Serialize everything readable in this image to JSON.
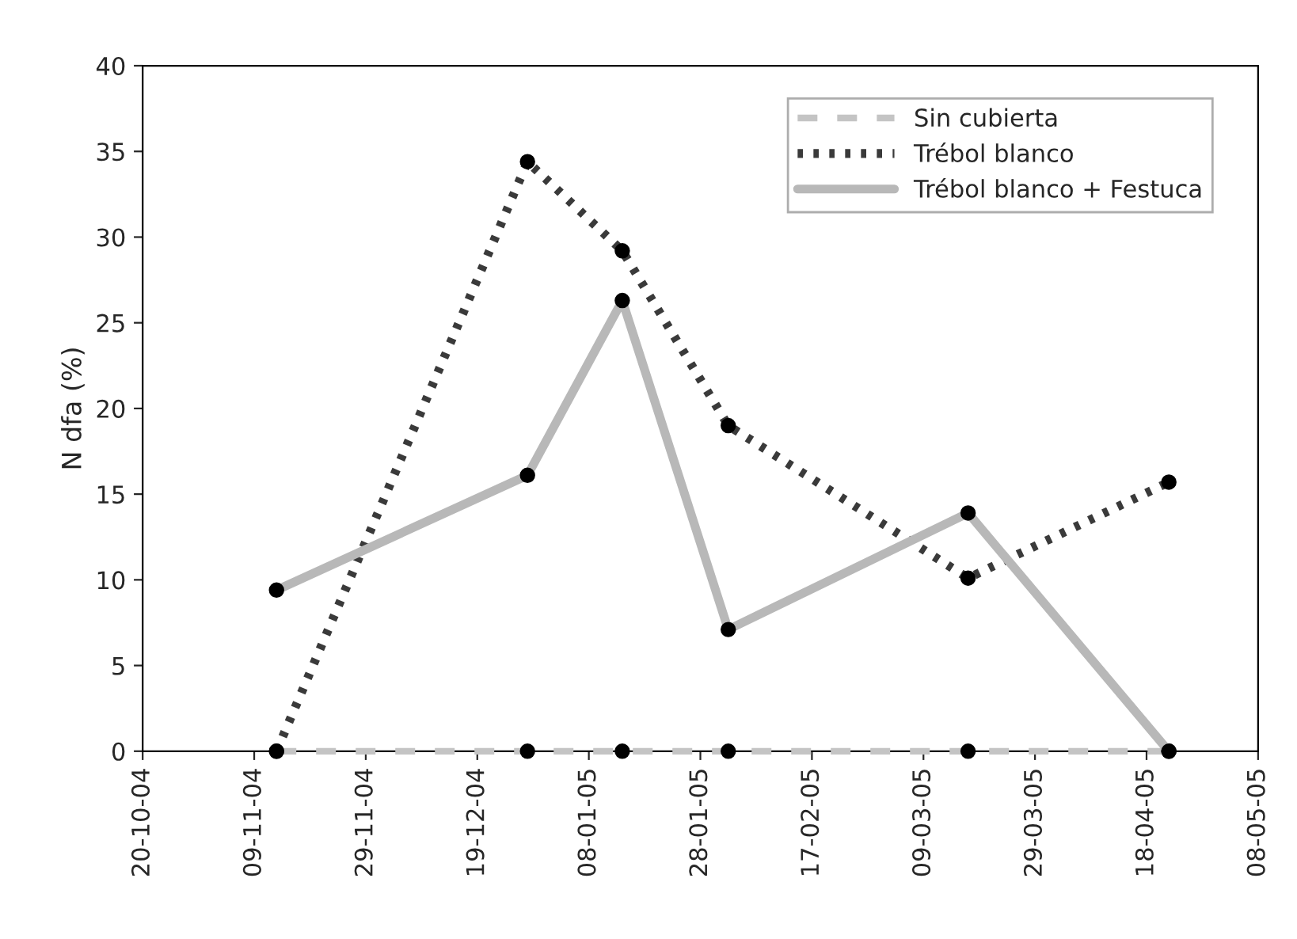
{
  "chart_data": {
    "type": "line",
    "ylabel": "N dfa (%)",
    "x": [
      "2004-11-13",
      "2004-12-28",
      "2005-01-14",
      "2005-02-02",
      "2005-03-17",
      "2005-04-22"
    ],
    "series": [
      {
        "name": "Sin cubierta",
        "color": "#c4c4c4",
        "line_style": "dashed",
        "values": [
          0,
          0,
          0,
          0,
          0,
          0
        ]
      },
      {
        "name": "Trébol blanco",
        "color": "#3a3a3a",
        "line_style": "dotted",
        "values": [
          0,
          34.4,
          29.2,
          19.0,
          10.1,
          15.7
        ]
      },
      {
        "name": "Trébol blanco + Festuca",
        "color": "#b8b8b8",
        "line_style": "solid",
        "values": [
          9.4,
          16.1,
          26.3,
          7.1,
          13.9,
          0
        ]
      }
    ],
    "marker": "circle",
    "xlim": [
      "2004-10-20",
      "2005-05-08"
    ],
    "xticks": [
      {
        "value": "2004-10-20",
        "label": "20-10-04"
      },
      {
        "value": "2004-11-09",
        "label": "09-11-04"
      },
      {
        "value": "2004-11-29",
        "label": "29-11-04"
      },
      {
        "value": "2004-12-19",
        "label": "19-12-04"
      },
      {
        "value": "2005-01-08",
        "label": "08-01-05"
      },
      {
        "value": "2005-01-28",
        "label": "28-01-05"
      },
      {
        "value": "2005-02-17",
        "label": "17-02-05"
      },
      {
        "value": "2005-03-09",
        "label": "09-03-05"
      },
      {
        "value": "2005-03-29",
        "label": "29-03-05"
      },
      {
        "value": "2005-04-18",
        "label": "18-04-05"
      },
      {
        "value": "2005-05-08",
        "label": "08-05-05"
      }
    ],
    "ylim": [
      0,
      40
    ],
    "yticks": [
      0,
      5,
      10,
      15,
      20,
      25,
      30,
      35,
      40
    ],
    "grid": false,
    "legend": "top right"
  }
}
